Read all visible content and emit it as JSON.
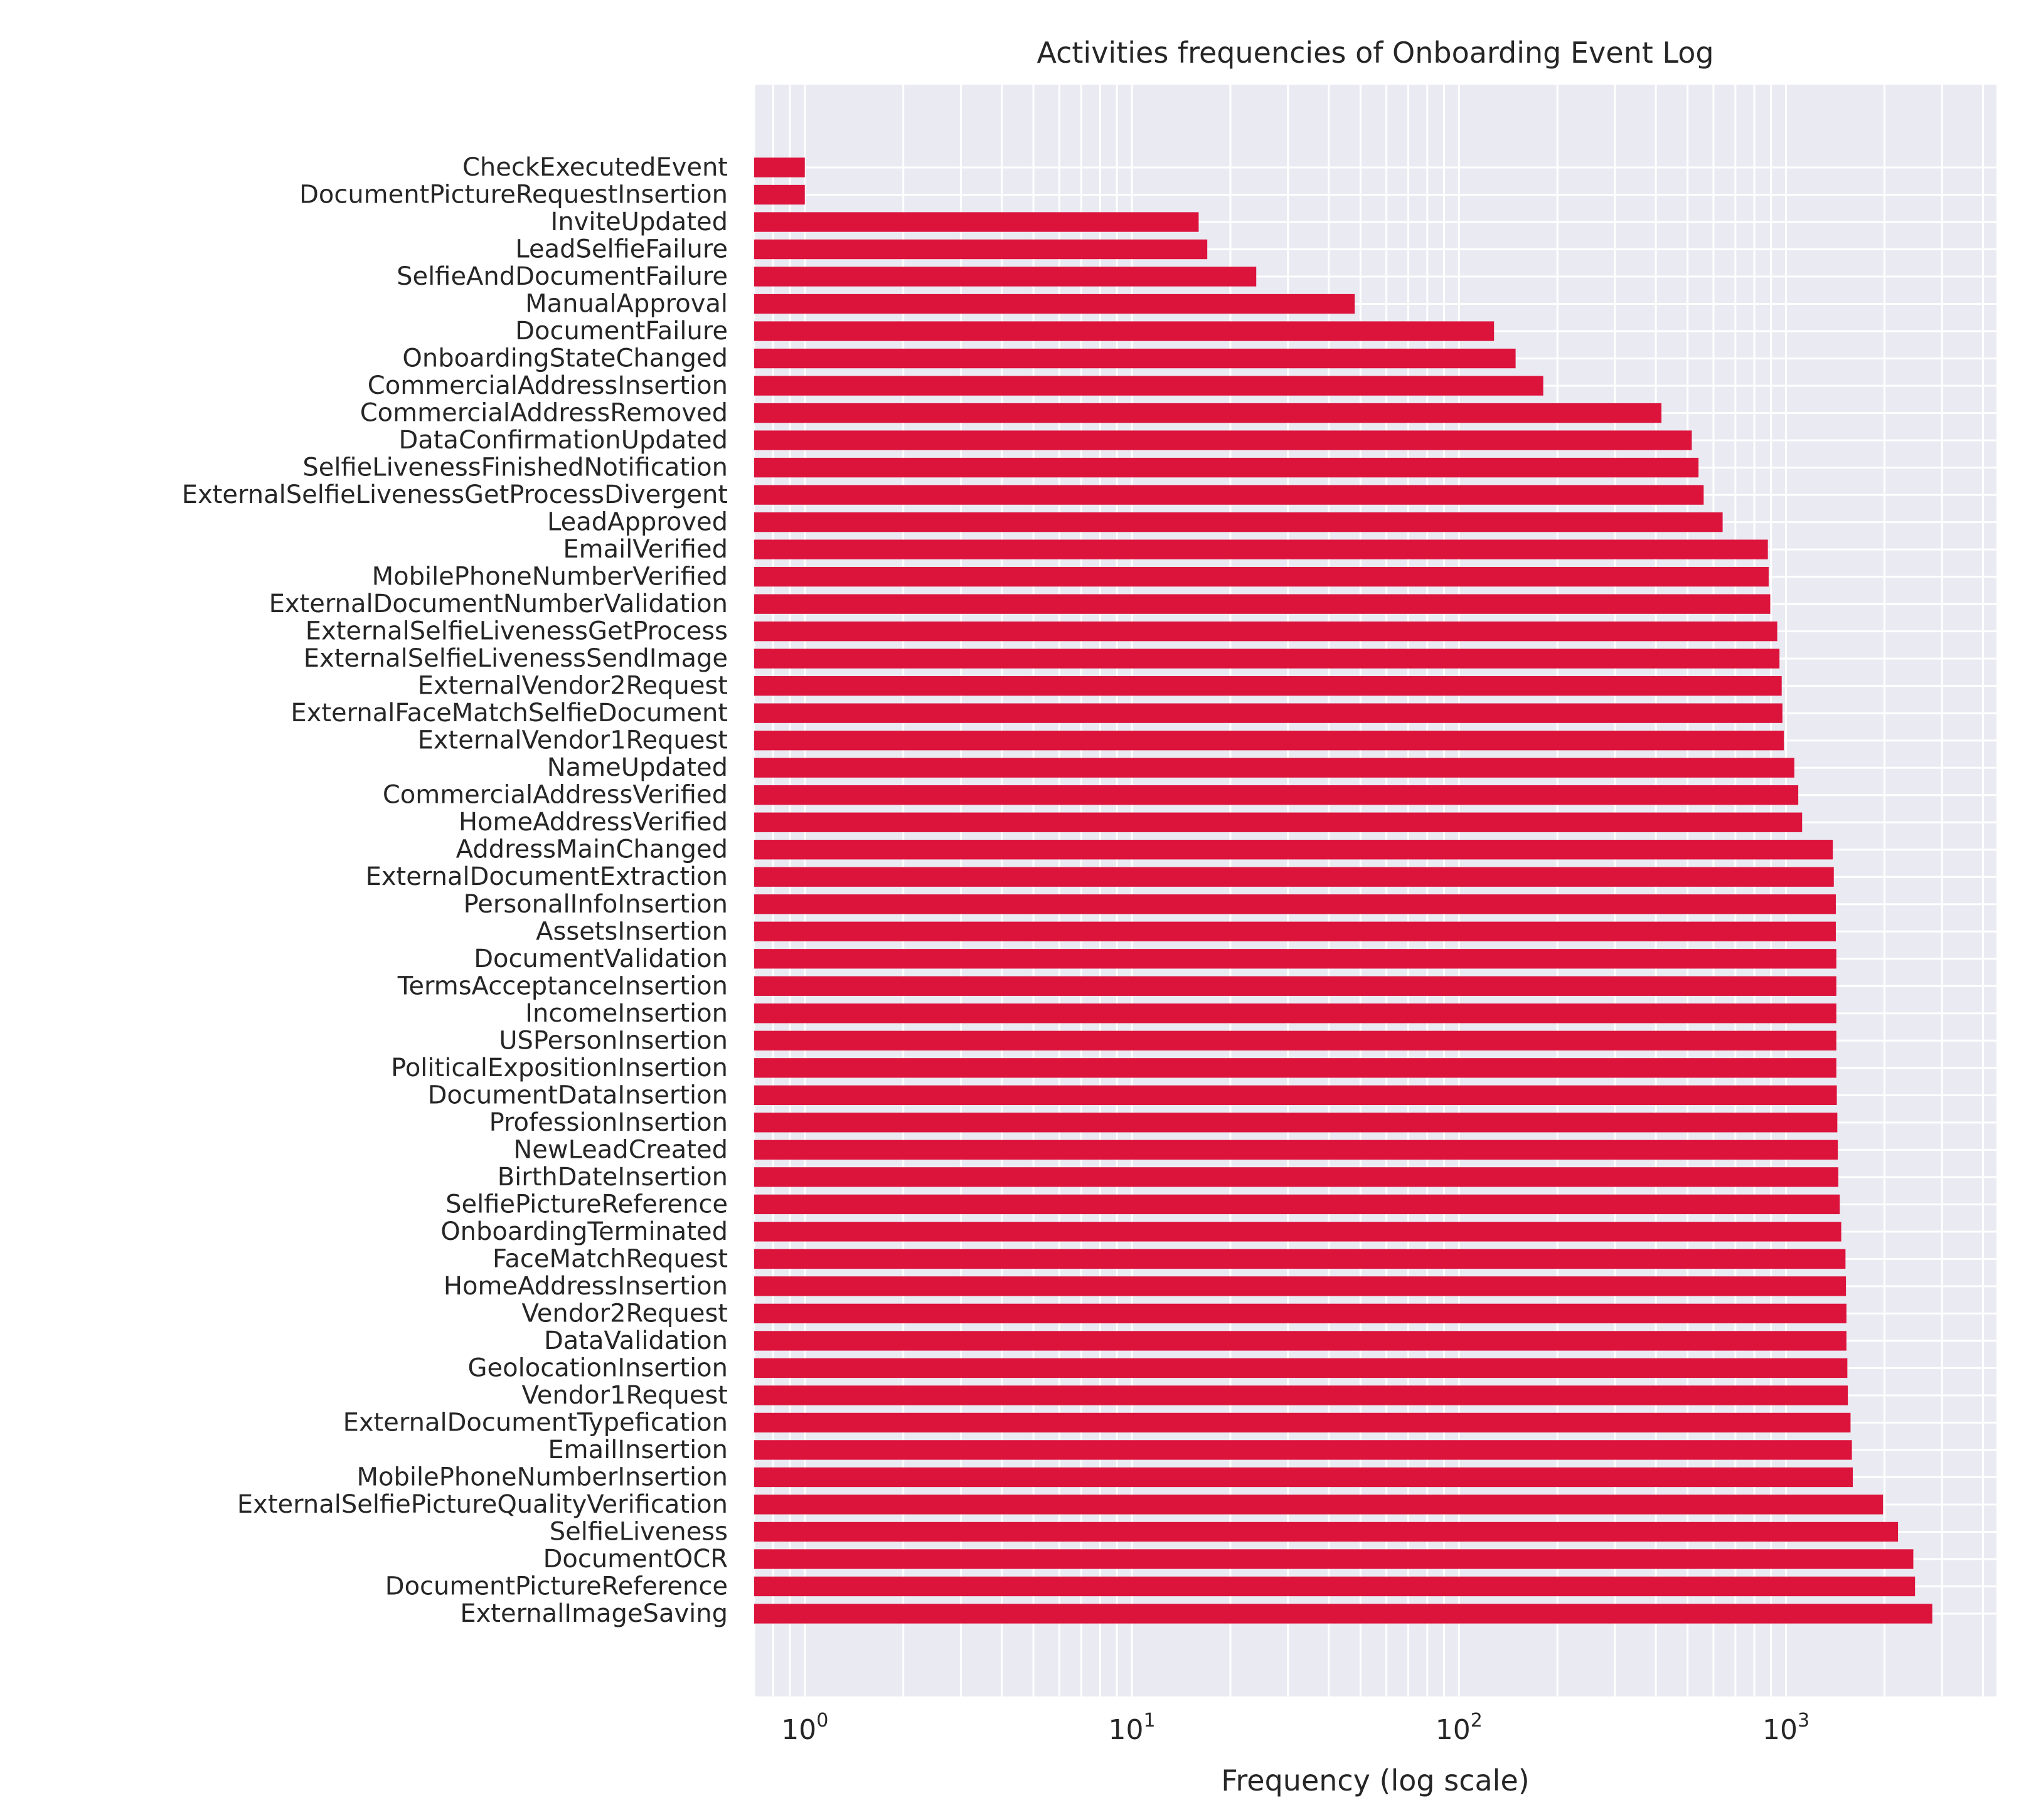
{
  "chart_data": {
    "type": "bar",
    "orientation": "horizontal",
    "title": "Activities frequencies of Onboarding Event Log",
    "xlabel": "Frequency (log scale)",
    "ylabel": "",
    "xscale": "log",
    "xlim": [
      0.7,
      4400
    ],
    "grid": true,
    "bar_color": "#dc143c",
    "background_color": "#eaeaf2",
    "xticks": [
      {
        "base": "10",
        "exp": "0",
        "value": 1
      },
      {
        "base": "10",
        "exp": "1",
        "value": 10
      },
      {
        "base": "10",
        "exp": "2",
        "value": 100
      },
      {
        "base": "10",
        "exp": "3",
        "value": 1000
      }
    ],
    "categories": [
      "CheckExecutedEvent",
      "DocumentPictureRequestInsertion",
      "InviteUpdated",
      "LeadSelfieFailure",
      "SelfieAndDocumentFailure",
      "ManualApproval",
      "DocumentFailure",
      "OnboardingStateChanged",
      "CommercialAddressInsertion",
      "CommercialAddressRemoved",
      "DataConfirmationUpdated",
      "SelfieLivenessFinishedNotification",
      "ExternalSelfieLivenessGetProcessDivergent",
      "LeadApproved",
      "EmailVerified",
      "MobilePhoneNumberVerified",
      "ExternalDocumentNumberValidation",
      "ExternalSelfieLivenessGetProcess",
      "ExternalSelfieLivenessSendImage",
      "ExternalVendor2Request",
      "ExternalFaceMatchSelfieDocument",
      "ExternalVendor1Request",
      "NameUpdated",
      "CommercialAddressVerified",
      "HomeAddressVerified",
      "AddressMainChanged",
      "ExternalDocumentExtraction",
      "PersonalInfoInsertion",
      "AssetsInsertion",
      "DocumentValidation",
      "TermsAcceptanceInsertion",
      "IncomeInsertion",
      "USPersonInsertion",
      "PoliticalExpositionInsertion",
      "DocumentDataInsertion",
      "ProfessionInsertion",
      "NewLeadCreated",
      "BirthDateInsertion",
      "SelfiePictureReference",
      "OnboardingTerminated",
      "FaceMatchRequest",
      "HomeAddressInsertion",
      "Vendor2Request",
      "DataValidation",
      "GeolocationInsertion",
      "Vendor1Request",
      "ExternalDocumentTypefication",
      "EmailInsertion",
      "MobilePhoneNumberInsertion",
      "ExternalSelfiePictureQualityVerification",
      "SelfieLiveness",
      "DocumentOCR",
      "DocumentPictureReference",
      "ExternalImageSaving"
    ],
    "values": [
      1,
      1,
      16,
      17,
      24,
      48,
      128,
      149,
      181,
      416,
      515,
      540,
      560,
      640,
      880,
      885,
      895,
      940,
      955,
      970,
      975,
      985,
      1060,
      1090,
      1120,
      1390,
      1400,
      1420,
      1420,
      1425,
      1425,
      1425,
      1425,
      1425,
      1430,
      1435,
      1440,
      1445,
      1460,
      1475,
      1520,
      1525,
      1530,
      1530,
      1540,
      1545,
      1575,
      1590,
      1600,
      1980,
      2200,
      2450,
      2480,
      2800
    ]
  }
}
